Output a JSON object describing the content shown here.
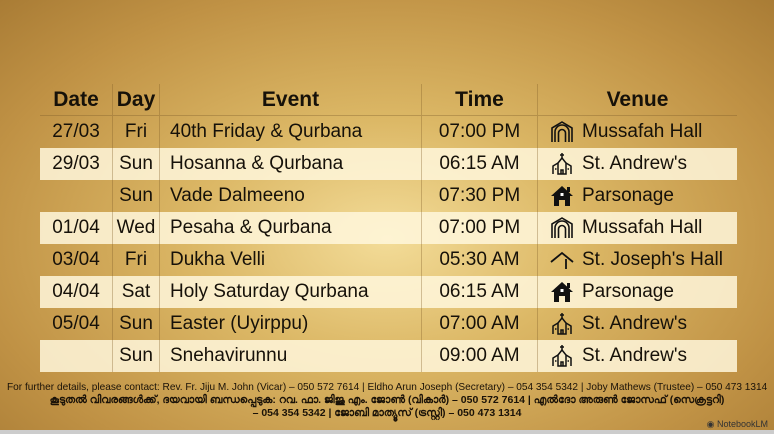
{
  "headers": {
    "date": "Date",
    "day": "Day",
    "event": "Event",
    "time": "Time",
    "venue": "Venue"
  },
  "rows": [
    {
      "date": "27/03",
      "day": "Fri",
      "event": "40th Friday & Qurbana",
      "time": "07:00 PM",
      "venue": "Mussafah Hall",
      "icon": "arch-hall-icon"
    },
    {
      "date": "29/03",
      "day": "Sun",
      "event": "Hosanna & Qurbana",
      "time": "06:15 AM",
      "venue": "St. Andrew's",
      "icon": "church-icon"
    },
    {
      "date": "",
      "day": "Sun",
      "event": "Vade Dalmeeno",
      "time": "07:30 PM",
      "venue": "Parsonage",
      "icon": "house-icon"
    },
    {
      "date": "01/04",
      "day": "Wed",
      "event": "Pesaha & Qurbana",
      "time": "07:00 PM",
      "venue": "Mussafah Hall",
      "icon": "arch-hall-icon"
    },
    {
      "date": "03/04",
      "day": "Fri",
      "event": "Dukha Velli",
      "time": "05:30 AM",
      "venue": "St. Joseph's Hall",
      "icon": "roof-icon"
    },
    {
      "date": "04/04",
      "day": "Sat",
      "event": "Holy Saturday Qurbana",
      "time": "06:15 AM",
      "venue": "Parsonage",
      "icon": "house-icon"
    },
    {
      "date": "05/04",
      "day": "Sun",
      "event": "Easter (Uyirppu)",
      "time": "07:00 AM",
      "venue": "St. Andrew's",
      "icon": "church-icon"
    },
    {
      "date": "",
      "day": "Sun",
      "event": "Snehavirunnu",
      "time": "09:00 AM",
      "venue": "St. Andrew's",
      "icon": "church-icon"
    }
  ],
  "footer": {
    "english": "For further details, please contact: Rev. Fr. Jiju M. John (Vicar) – 050 572 7614 | Eldho Arun Joseph (Secretary) – 054 354 5342 | Joby Mathews (Trustee) – 050 473 1314",
    "malayalam_1": "കൂടുതൽ വിവരങ്ങൾക്ക്, ദയവായി ബന്ധപ്പെടുക: റവ. ഫാ. ജിജു എം. ജോൺ (വികാർ) – 050 572 7614 | എൽദോ അരുൺ ജോസഫ് (സെക്രട്ടറി)",
    "malayalam_2": "– 054 354 5342 | ജോബി മാത്യൂസ് (ട്രസ്റ്റി) – 050 473 1314",
    "brand": "NotebookLM"
  }
}
